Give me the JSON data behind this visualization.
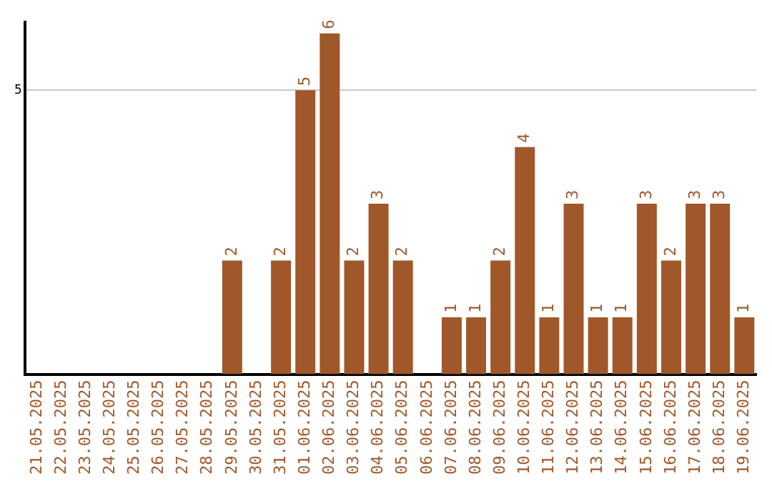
{
  "chart_data": {
    "type": "bar",
    "categories": [
      "21.05.2025",
      "22.05.2025",
      "23.05.2025",
      "24.05.2025",
      "25.05.2025",
      "26.05.2025",
      "27.05.2025",
      "28.05.2025",
      "29.05.2025",
      "30.05.2025",
      "31.05.2025",
      "01.06.2025",
      "02.06.2025",
      "03.06.2025",
      "04.06.2025",
      "05.06.2025",
      "06.06.2025",
      "07.06.2025",
      "08.06.2025",
      "09.06.2025",
      "10.06.2025",
      "11.06.2025",
      "12.06.2025",
      "13.06.2025",
      "14.06.2025",
      "15.06.2025",
      "16.06.2025",
      "17.06.2025",
      "18.06.2025",
      "19.06.2025"
    ],
    "values": [
      0,
      0,
      0,
      0,
      0,
      0,
      0,
      0,
      2,
      0,
      2,
      5,
      6,
      2,
      3,
      2,
      0,
      1,
      1,
      2,
      4,
      1,
      3,
      1,
      1,
      3,
      2,
      3,
      3,
      1
    ],
    "value_labels": [
      null,
      null,
      null,
      null,
      null,
      null,
      null,
      null,
      "2",
      null,
      "2",
      "5",
      "6",
      "2",
      "3",
      "2",
      null,
      "1",
      "1",
      "2",
      "4",
      "1",
      "3",
      "1",
      "1",
      "3",
      "2",
      "3",
      "3",
      "1"
    ],
    "color": "#a0582a",
    "ylim": [
      0,
      6.2
    ],
    "yticks": [
      5
    ],
    "grid": "y",
    "legend": false
  }
}
